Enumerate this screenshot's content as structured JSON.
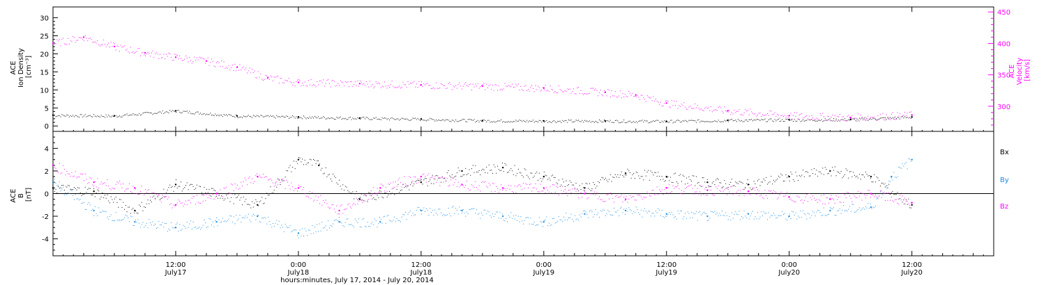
{
  "chart_data": [
    {
      "type": "scatter",
      "panel": "top",
      "ylabel_lines": [
        "ACE",
        "Ion Density",
        "[cm⁻³]"
      ],
      "ylim": [
        -1.5,
        33
      ],
      "yticks": [
        0,
        5,
        10,
        15,
        20,
        25,
        30
      ],
      "y2label_lines": [
        "ACE",
        "Velocity",
        "[km/s]"
      ],
      "y2lim": [
        260,
        458
      ],
      "y2ticks": [
        300,
        350,
        400,
        450
      ],
      "series": [
        {
          "name": "",
          "color": "#000000",
          "axis": "left",
          "x_hours": [
            0,
            6,
            12,
            18,
            24,
            30,
            36,
            42,
            48,
            54,
            60,
            66,
            72,
            78,
            84
          ],
          "values": [
            3.0,
            2.8,
            4.2,
            2.8,
            2.5,
            2.2,
            1.9,
            1.5,
            1.4,
            1.4,
            1.3,
            1.6,
            1.7,
            1.8,
            2.5
          ]
        },
        {
          "name": "",
          "color": "#ff00ff",
          "axis": "right",
          "x_hours": [
            0,
            3,
            6,
            9,
            12,
            15,
            18,
            21,
            24,
            30,
            36,
            42,
            48,
            54,
            57,
            60,
            66,
            72,
            78,
            84
          ],
          "values": [
            400,
            410,
            395,
            385,
            378,
            372,
            362,
            345,
            338,
            336,
            334,
            332,
            329,
            322,
            318,
            305,
            293,
            285,
            282,
            286
          ]
        }
      ]
    },
    {
      "type": "scatter",
      "panel": "bottom",
      "ylabel_lines": [
        "ACE",
        "B",
        "[nT]"
      ],
      "ylim": [
        -5.5,
        5.5
      ],
      "yticks": [
        -4,
        -2,
        0,
        2,
        4
      ],
      "legend_position": "right",
      "series": [
        {
          "name": "Bx",
          "color": "#000000",
          "x_hours": [
            0,
            4,
            8,
            12,
            16,
            20,
            24,
            26,
            30,
            36,
            40,
            44,
            48,
            52,
            56,
            60,
            64,
            68,
            72,
            76,
            80,
            84
          ],
          "values": [
            0.5,
            0.2,
            -1.5,
            0.8,
            0.0,
            -1.0,
            3.0,
            2.5,
            -0.5,
            1.0,
            2.0,
            2.3,
            1.5,
            0.5,
            1.8,
            1.5,
            1.0,
            0.8,
            1.5,
            2.0,
            1.5,
            -1.0
          ]
        },
        {
          "name": "By",
          "color": "#1a8ce0",
          "x_hours": [
            0,
            4,
            8,
            12,
            16,
            20,
            24,
            28,
            32,
            36,
            40,
            44,
            48,
            52,
            56,
            60,
            64,
            68,
            72,
            76,
            80,
            82,
            84
          ],
          "values": [
            1.0,
            -1.5,
            -2.5,
            -3.0,
            -2.5,
            -2.0,
            -3.5,
            -2.5,
            -2.5,
            -1.5,
            -1.5,
            -2.0,
            -2.5,
            -1.8,
            -1.5,
            -1.8,
            -2.0,
            -1.8,
            -2.0,
            -1.5,
            -1.2,
            1.5,
            3.0
          ]
        },
        {
          "name": "Bz",
          "color": "#ff00ff",
          "x_hours": [
            0,
            4,
            8,
            12,
            16,
            20,
            24,
            28,
            32,
            36,
            40,
            44,
            48,
            52,
            56,
            60,
            64,
            68,
            72,
            76,
            80,
            84
          ],
          "values": [
            2.5,
            1.0,
            0.5,
            -1.0,
            0.0,
            1.5,
            0.5,
            -1.5,
            0.5,
            1.5,
            0.8,
            0.5,
            0.5,
            0.0,
            -0.5,
            0.5,
            0.3,
            0.2,
            -0.3,
            -0.5,
            0.0,
            -0.8
          ]
        }
      ]
    }
  ],
  "xaxis": {
    "xlim_hours": [
      0,
      92
    ],
    "ticks": [
      {
        "hours": 12,
        "time": "12:00",
        "date": "July17"
      },
      {
        "hours": 24,
        "time": "0:00",
        "date": "July18"
      },
      {
        "hours": 36,
        "time": "12:00",
        "date": "July18"
      },
      {
        "hours": 48,
        "time": "0:00",
        "date": "July19"
      },
      {
        "hours": 60,
        "time": "12:00",
        "date": "July19"
      },
      {
        "hours": 72,
        "time": "0:00",
        "date": "July20"
      },
      {
        "hours": 84,
        "time": "12:00",
        "date": "July20"
      }
    ],
    "xlabel": "hours:minutes, July 17, 2014 - July 20, 2014"
  }
}
